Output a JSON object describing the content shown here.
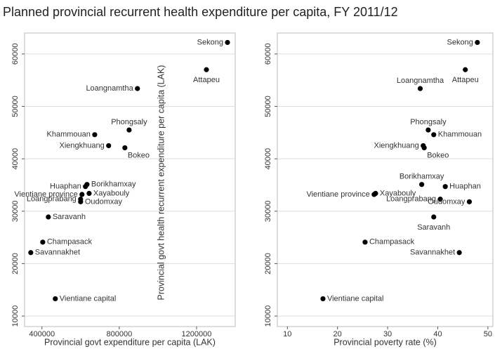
{
  "title": "Planned provincial recurrent health expenditure per capita, FY 2011/12",
  "chart_data": [
    {
      "type": "scatter",
      "color": "#000000",
      "grid": true,
      "xlabel": "Provincial govt expenditure per capita (LAK)",
      "ylabel": "Provincial govt health recurrent expenditure per capita (LAK)",
      "xlim": [
        310000,
        1400000
      ],
      "ylim": [
        8000,
        64000
      ],
      "xticks": [
        400000,
        800000,
        1200000
      ],
      "yticks": [
        10000,
        20000,
        30000,
        40000,
        50000,
        60000
      ],
      "labels": [
        "Sekong",
        "Attapeu",
        "Loangnamtha",
        "Phongsaly",
        "Khammouan",
        "Xiengkhuang",
        "Bokeo",
        "Borikhamxay",
        "Huaphan",
        "Xayabouly",
        "Vientiane province",
        "Loangprabang",
        "Oudomxay",
        "Saravanh",
        "Champasack",
        "Savannakhet",
        "Vientiane capital"
      ],
      "x": [
        1360000,
        1251000,
        894000,
        851000,
        673000,
        745000,
        829000,
        633000,
        625000,
        644000,
        607000,
        600000,
        600000,
        433000,
        404000,
        342000,
        469000
      ],
      "y": [
        62200,
        57000,
        53400,
        45500,
        44600,
        42500,
        42100,
        35100,
        34700,
        33400,
        33200,
        32300,
        31800,
        28900,
        24100,
        22100,
        13300
      ]
    },
    {
      "type": "scatter",
      "color": "#000000",
      "grid": true,
      "xlabel": "Provincial poverty rate (%)",
      "xlim": [
        8,
        51
      ],
      "ylim": [
        8000,
        64000
      ],
      "xticks": [
        10,
        20,
        30,
        40,
        50
      ],
      "yticks": [
        10000,
        20000,
        30000,
        40000,
        50000,
        60000
      ],
      "labels": [
        "Sekong",
        "Attapeu",
        "Loangnamtha",
        "Phongsaly",
        "Khammouan",
        "Xiengkhuang",
        "Bokeo",
        "Borikhamxay",
        "Huaphan",
        "Xayabouly",
        "Vientiane province",
        "Loangprabang",
        "Oudomxay",
        "Saravanh",
        "Champasack",
        "Savannakhet",
        "Vientiane capital"
      ],
      "x": [
        47.9,
        45.5,
        36.5,
        38.1,
        39.2,
        37.1,
        37.3,
        36.8,
        41.5,
        27.6,
        27.3,
        40.5,
        46.3,
        39.2,
        25.5,
        44.3,
        17.1
      ],
      "y": [
        62200,
        57000,
        53400,
        45500,
        44600,
        42500,
        42100,
        35100,
        34700,
        33400,
        33200,
        32300,
        31800,
        28900,
        24100,
        22100,
        13300
      ]
    }
  ]
}
